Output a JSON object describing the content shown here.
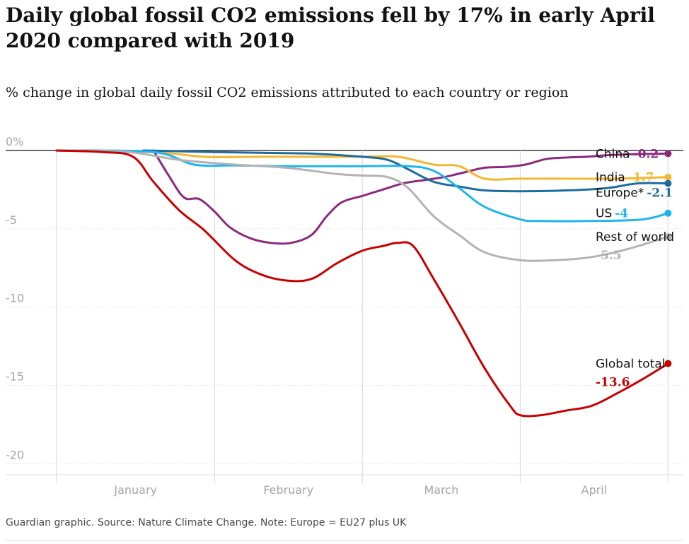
{
  "title": "Daily global fossil CO2 emissions fell by 17% in early April 2020 compared with 2019",
  "subtitle": "% change in global daily fossil CO2 emissions attributed to each country or region",
  "footer": "Guardian graphic. Source: Nature Climate Change. Note: Europe = EU27 plus UK",
  "chart_data": {
    "type": "line",
    "x_unit": "2020 date",
    "x_start": "2020-01-01",
    "x_end": "2020-04-30",
    "xlim": [
      "2019-12-22",
      "2020-05-03"
    ],
    "ylim": [
      -20.7,
      0
    ],
    "y_ticks": [
      0,
      -5,
      -10,
      -15,
      -20
    ],
    "y_tick_labels": [
      "0%",
      "-5",
      "-10",
      "-15",
      "-20"
    ],
    "x_ticks": [
      "January",
      "February",
      "March",
      "April"
    ],
    "x_gridlines": [
      "2020-01-01",
      "2020-02-01",
      "2020-03-01",
      "2020-04-01",
      "2020-04-30"
    ],
    "grid": "horizontal dotted",
    "legend": "direct labels at line ends",
    "series": [
      {
        "name": "China",
        "value_label": "-0.2",
        "color": "#8b2a7e",
        "label_lines": 1,
        "x": [
          "2020-01-20",
          "2020-01-23",
          "2020-01-26",
          "2020-01-29",
          "2020-02-01",
          "2020-02-04",
          "2020-02-08",
          "2020-02-12",
          "2020-02-16",
          "2020-02-20",
          "2020-02-23",
          "2020-02-26",
          "2020-03-01",
          "2020-03-05",
          "2020-03-09",
          "2020-03-13",
          "2020-03-17",
          "2020-03-21",
          "2020-03-25",
          "2020-03-29",
          "2020-04-02",
          "2020-04-06",
          "2020-04-10",
          "2020-04-14",
          "2020-04-18",
          "2020-04-22",
          "2020-04-26",
          "2020-04-30"
        ],
        "y": [
          0,
          -1.6,
          -3.0,
          -3.1,
          -3.9,
          -4.9,
          -5.6,
          -5.9,
          -5.9,
          -5.4,
          -4.2,
          -3.3,
          -2.9,
          -2.5,
          -2.1,
          -1.9,
          -1.7,
          -1.4,
          -1.1,
          -1.05,
          -0.9,
          -0.55,
          -0.45,
          -0.4,
          -0.3,
          -0.25,
          -0.22,
          -0.2
        ]
      },
      {
        "name": "India",
        "value_label": "-1.7",
        "color": "#f5b731",
        "label_lines": 1,
        "x": [
          "2020-01-01",
          "2020-01-20",
          "2020-01-30",
          "2020-02-10",
          "2020-02-20",
          "2020-03-01",
          "2020-03-08",
          "2020-03-15",
          "2020-03-20",
          "2020-03-25",
          "2020-04-01",
          "2020-04-10",
          "2020-04-20",
          "2020-04-30"
        ],
        "y": [
          0,
          -0.1,
          -0.4,
          -0.4,
          -0.4,
          -0.4,
          -0.4,
          -0.9,
          -1.0,
          -1.8,
          -1.8,
          -1.8,
          -1.8,
          -1.7
        ]
      },
      {
        "name": "Europe*",
        "value_label": "-2.1",
        "color": "#1d6c9e",
        "label_lines": 1,
        "x": [
          "2020-01-18",
          "2020-01-25",
          "2020-02-01",
          "2020-02-10",
          "2020-02-20",
          "2020-03-01",
          "2020-03-06",
          "2020-03-10",
          "2020-03-15",
          "2020-03-20",
          "2020-03-25",
          "2020-04-01",
          "2020-04-10",
          "2020-04-18",
          "2020-04-24",
          "2020-04-30"
        ],
        "y": [
          0,
          -0.05,
          -0.1,
          -0.15,
          -0.2,
          -0.4,
          -0.6,
          -1.2,
          -2.0,
          -2.3,
          -2.55,
          -2.6,
          -2.55,
          -2.4,
          -2.1,
          -2.1
        ]
      },
      {
        "name": "US",
        "value_label": "-4",
        "color": "#1fb4f0",
        "label_lines": 1,
        "x": [
          "2020-01-01",
          "2020-01-20",
          "2020-01-28",
          "2020-02-05",
          "2020-02-15",
          "2020-03-01",
          "2020-03-10",
          "2020-03-15",
          "2020-03-20",
          "2020-03-25",
          "2020-04-01",
          "2020-04-05",
          "2020-04-15",
          "2020-04-25",
          "2020-04-30"
        ],
        "y": [
          0,
          -0.1,
          -0.9,
          -0.95,
          -1.0,
          -1.0,
          -1.0,
          -1.3,
          -2.4,
          -3.6,
          -4.4,
          -4.5,
          -4.5,
          -4.4,
          -4.0
        ]
      },
      {
        "name": "Rest of world",
        "value_label": "-5.5",
        "color": "#b3b3b3",
        "label_lines": 2,
        "x": [
          "2020-01-01",
          "2020-01-15",
          "2020-01-25",
          "2020-02-05",
          "2020-02-15",
          "2020-02-25",
          "2020-03-01",
          "2020-03-06",
          "2020-03-10",
          "2020-03-15",
          "2020-03-20",
          "2020-03-25",
          "2020-04-01",
          "2020-04-08",
          "2020-04-15",
          "2020-04-22",
          "2020-04-30"
        ],
        "y": [
          0,
          -0.1,
          -0.6,
          -0.9,
          -1.1,
          -1.5,
          -1.6,
          -1.7,
          -2.4,
          -4.2,
          -5.4,
          -6.5,
          -7.0,
          -7.0,
          -6.8,
          -6.3,
          -5.5
        ]
      },
      {
        "name": "Global total",
        "value_label": "-13.6",
        "color": "#c70000",
        "label_lines": 2,
        "x": [
          "2020-01-01",
          "2020-01-10",
          "2020-01-16",
          "2020-01-20",
          "2020-01-25",
          "2020-01-30",
          "2020-02-05",
          "2020-02-10",
          "2020-02-15",
          "2020-02-20",
          "2020-02-25",
          "2020-03-01",
          "2020-03-05",
          "2020-03-08",
          "2020-03-11",
          "2020-03-15",
          "2020-03-20",
          "2020-03-25",
          "2020-03-30",
          "2020-04-01",
          "2020-04-05",
          "2020-04-10",
          "2020-04-15",
          "2020-04-20",
          "2020-04-25",
          "2020-04-30"
        ],
        "y": [
          0,
          -0.1,
          -0.4,
          -2.0,
          -3.8,
          -5.1,
          -7.0,
          -7.9,
          -8.3,
          -8.2,
          -7.2,
          -6.4,
          -6.1,
          -5.9,
          -6.1,
          -8.2,
          -11.0,
          -13.9,
          -16.3,
          -16.9,
          -16.9,
          -16.6,
          -16.3,
          -15.5,
          -14.6,
          -13.6
        ]
      }
    ]
  }
}
